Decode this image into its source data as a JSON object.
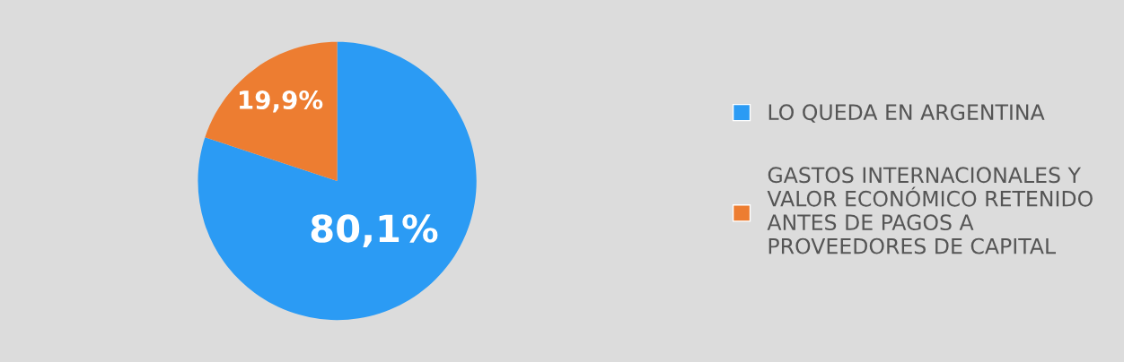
{
  "chart_data": {
    "type": "pie",
    "categories": [
      "LO QUEDA EN ARGENTINA",
      "GASTOS INTERNACIONALES Y VALOR ECONÓMICO RETENIDO ANTES DE PAGOS A PROVEEDORES DE CAPITAL"
    ],
    "values": [
      80.1,
      19.9
    ],
    "colors": [
      "#2b9bf4",
      "#ed7d31"
    ],
    "value_labels": [
      "80,1%",
      "19,9%"
    ],
    "legend": "right"
  }
}
